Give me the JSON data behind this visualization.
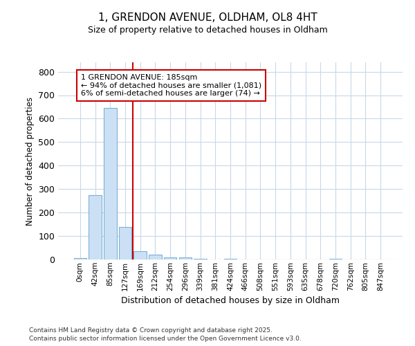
{
  "title_line1": "1, GRENDON AVENUE, OLDHAM, OL8 4HT",
  "title_line2": "Size of property relative to detached houses in Oldham",
  "xlabel": "Distribution of detached houses by size in Oldham",
  "ylabel": "Number of detached properties",
  "footnote1": "Contains HM Land Registry data © Crown copyright and database right 2025.",
  "footnote2": "Contains public sector information licensed under the Open Government Licence v3.0.",
  "annotation_line1": "1 GRENDON AVENUE: 185sqm",
  "annotation_line2": "← 94% of detached houses are smaller (1,081)",
  "annotation_line3": "6% of semi-detached houses are larger (74) →",
  "bar_labels": [
    "0sqm",
    "42sqm",
    "85sqm",
    "127sqm",
    "169sqm",
    "212sqm",
    "254sqm",
    "296sqm",
    "339sqm",
    "381sqm",
    "424sqm",
    "466sqm",
    "508sqm",
    "551sqm",
    "593sqm",
    "635sqm",
    "678sqm",
    "720sqm",
    "762sqm",
    "805sqm",
    "847sqm"
  ],
  "bar_values": [
    5,
    275,
    645,
    140,
    35,
    20,
    10,
    8,
    3,
    0,
    3,
    0,
    0,
    0,
    0,
    0,
    0,
    3,
    0,
    0,
    0
  ],
  "bar_color": "#cce0f5",
  "bar_edgecolor": "#7ab0d8",
  "vline_x": 3.5,
  "vline_color": "#cc0000",
  "annotation_box_color": "#cc0000",
  "ylim": [
    0,
    840
  ],
  "yticks": [
    0,
    100,
    200,
    300,
    400,
    500,
    600,
    700,
    800
  ],
  "bg_color": "#ffffff",
  "plot_bg_color": "#ffffff",
  "grid_color": "#c8d8e8"
}
